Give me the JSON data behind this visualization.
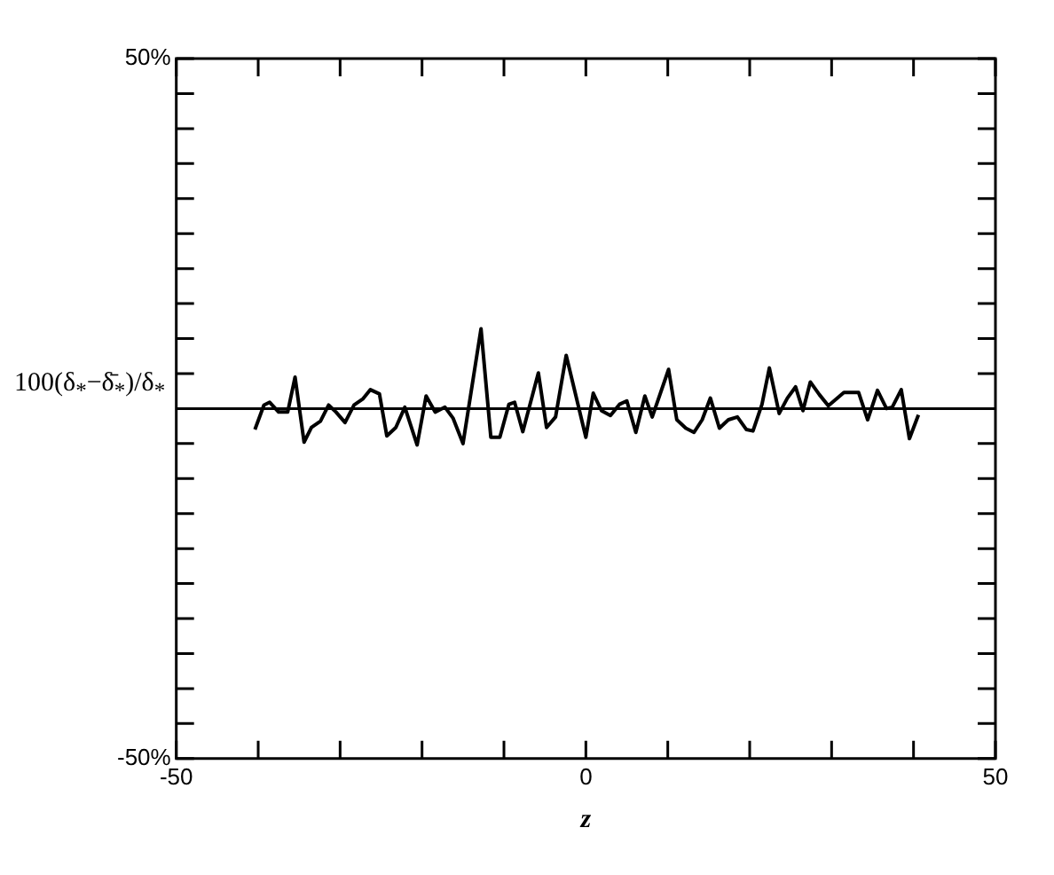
{
  "chart_data": {
    "type": "line",
    "xlabel": "z",
    "ylabel": "100(δ$_{*}$−δ̄$_{*}$)/δ$_{*}$",
    "xlim": [
      -50,
      50
    ],
    "ylim": [
      -50,
      50
    ],
    "xticks": [
      -50,
      {
        "value": -40,
        "label": null
      },
      {
        "value": -30,
        "label": null
      },
      {
        "value": -20,
        "label": null
      },
      {
        "value": -10,
        "label": null
      },
      0,
      {
        "value": 10,
        "label": null
      },
      {
        "value": 20,
        "label": null
      },
      {
        "value": 30,
        "label": null
      },
      {
        "value": 40,
        "label": null
      },
      50
    ],
    "yticks": [
      {
        "value": -50,
        "label": "-50%"
      },
      {
        "value": -45,
        "label": null
      },
      {
        "value": -40,
        "label": null
      },
      {
        "value": -35,
        "label": null
      },
      {
        "value": -30,
        "label": null
      },
      {
        "value": -25,
        "label": null
      },
      {
        "value": -20,
        "label": null
      },
      {
        "value": -15,
        "label": null
      },
      {
        "value": -10,
        "label": null
      },
      {
        "value": -5,
        "label": null
      },
      {
        "value": 0,
        "label": null
      },
      {
        "value": 5,
        "label": null
      },
      {
        "value": 10,
        "label": null
      },
      {
        "value": 15,
        "label": null
      },
      {
        "value": 20,
        "label": null
      },
      {
        "value": 25,
        "label": null
      },
      {
        "value": 30,
        "label": null
      },
      {
        "value": 35,
        "label": null
      },
      {
        "value": 40,
        "label": null
      },
      {
        "value": 45,
        "label": null
      },
      {
        "value": 50,
        "label": "50%"
      }
    ],
    "marker": "none",
    "ref_lines": [
      {
        "axis": "y",
        "value": 0,
        "color": "#000000"
      }
    ],
    "series": [
      {
        "color": "#000000",
        "x": [
          -40.4,
          -39.3,
          -38.6,
          -37.5,
          -36.4,
          -35.5,
          -34.4,
          -33.5,
          -32.4,
          -31.4,
          -30.5,
          -29.4,
          -28.3,
          -27.2,
          -26.3,
          -25.2,
          -24.3,
          -23.2,
          -22.1,
          -20.6,
          -19.5,
          -18.4,
          -17.2,
          -16.2,
          -15,
          -12.8,
          -11.6,
          -10.5,
          -9.4,
          -8.7,
          -7.7,
          -5.8,
          -4.8,
          -3.7,
          -2.4,
          0,
          0.9,
          1.9,
          3,
          4.1,
          5,
          6.1,
          7.2,
          8.1,
          10.1,
          11.1,
          12.2,
          13.2,
          14.2,
          15.2,
          16.3,
          17.4,
          18.5,
          19.6,
          20.4,
          21.5,
          22.4,
          23.6,
          24.6,
          25.6,
          26.5,
          27.4,
          28.5,
          29.6,
          31.5,
          33.3,
          34.4,
          35.6,
          36.7,
          37.4,
          38.5,
          39.5,
          40.6
        ],
        "values": [
          -3,
          0.5,
          0.9,
          -0.5,
          -0.5,
          4.5,
          -4.8,
          -2.7,
          -1.8,
          0.5,
          -0.5,
          -2,
          0.5,
          1.4,
          2.7,
          2.1,
          -3.9,
          -2.7,
          0.2,
          -5.2,
          1.8,
          -0.5,
          0.2,
          -1.4,
          -5,
          11.4,
          -4.1,
          -4.1,
          0.6,
          0.9,
          -3.3,
          5.1,
          -2.7,
          -1.2,
          7.6,
          -4.1,
          2.2,
          -0.3,
          -1,
          0.6,
          1.1,
          -3.4,
          1.8,
          -1.2,
          5.6,
          -1.6,
          -2.8,
          -3.4,
          -1.6,
          1.5,
          -2.8,
          -1.6,
          -1.2,
          -3,
          -3.2,
          0.6,
          5.8,
          -0.7,
          1.5,
          3.1,
          -0.3,
          3.8,
          2,
          0.4,
          2.3,
          2.3,
          -1.6,
          2.6,
          0,
          0.2,
          2.7,
          -4.3,
          -0.9
        ]
      }
    ]
  }
}
